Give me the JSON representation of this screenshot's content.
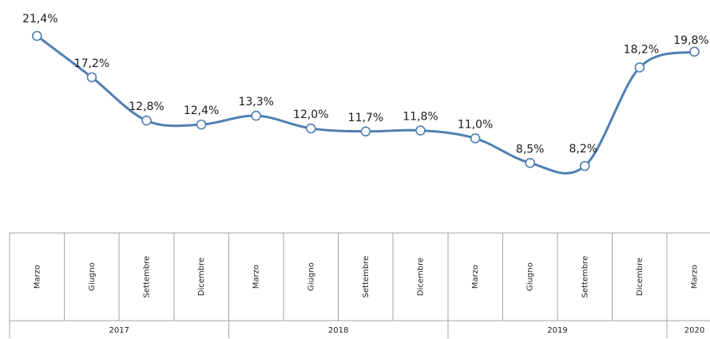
{
  "chart_data": {
    "type": "line",
    "title": "",
    "xlabel": "",
    "ylabel": "",
    "categories": [
      "Marzo",
      "Giugno",
      "Settembre",
      "Dicembre",
      "Marzo",
      "Giugno",
      "Settembre",
      "Dicembre",
      "Marzo",
      "Giugno",
      "Settembre",
      "Dicembre",
      "Marzo"
    ],
    "year_groups": [
      {
        "label": "2017",
        "count": 4
      },
      {
        "label": "2018",
        "count": 4
      },
      {
        "label": "2019",
        "count": 4
      },
      {
        "label": "2020",
        "count": 1
      }
    ],
    "values": [
      21.4,
      17.2,
      12.8,
      12.4,
      13.3,
      12.0,
      11.7,
      11.8,
      11.0,
      8.5,
      8.2,
      18.2,
      19.8
    ],
    "data_labels": [
      "21,4%",
      "17,2%",
      "12,8%",
      "12,4%",
      "13,3%",
      "12,0%",
      "11,7%",
      "11,8%",
      "11,0%",
      "8,5%",
      "8,2%",
      "18,2%",
      "19,8%"
    ],
    "line_color": "#4f7fb3",
    "marker_fill": "#ffffff",
    "grid": false,
    "legend": "none"
  }
}
